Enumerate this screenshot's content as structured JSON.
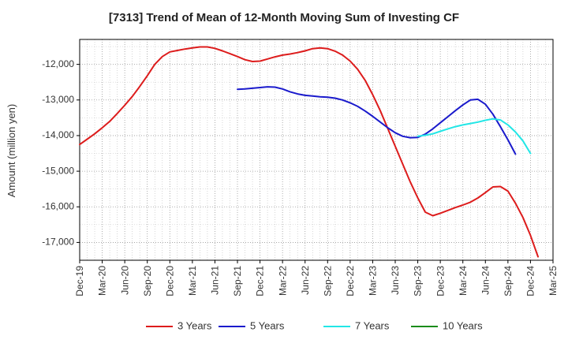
{
  "chart_data": {
    "type": "line",
    "title": "[7313]  Trend of Mean of 12-Month Moving Sum of Investing CF",
    "xlabel": "",
    "ylabel": "Amount (million yen)",
    "ylim": [
      -17500,
      -11300
    ],
    "yticks": [
      -12000,
      -13000,
      -14000,
      -15000,
      -16000,
      -17000
    ],
    "ytick_labels": [
      "-12,000",
      "-13,000",
      "-14,000",
      "-15,000",
      "-16,000",
      "-17,000"
    ],
    "x_tick_labels": [
      "Dec-19",
      "Mar-20",
      "Jun-20",
      "Sep-20",
      "Dec-20",
      "Mar-21",
      "Jun-21",
      "Sep-21",
      "Dec-21",
      "Mar-22",
      "Jun-22",
      "Sep-22",
      "Dec-22",
      "Mar-23",
      "Jun-23",
      "Sep-23",
      "Dec-23",
      "Mar-24",
      "Jun-24",
      "Sep-24",
      "Dec-24",
      "Mar-25"
    ],
    "grid": true,
    "legend_position": "bottom",
    "series": [
      {
        "name": "3 Years",
        "color": "#dd1c1c",
        "start_index": 0,
        "values": [
          -14250,
          -14100,
          -13950,
          -13780,
          -13600,
          -13380,
          -13150,
          -12900,
          -12620,
          -12320,
          -12000,
          -11780,
          -11650,
          -11610,
          -11570,
          -11540,
          -11510,
          -11510,
          -11550,
          -11620,
          -11700,
          -11780,
          -11870,
          -11920,
          -11910,
          -11850,
          -11790,
          -11740,
          -11710,
          -11670,
          -11620,
          -11560,
          -11540,
          -11560,
          -11630,
          -11740,
          -11910,
          -12140,
          -12450,
          -12850,
          -13300,
          -13800,
          -14300,
          -14800,
          -15300,
          -15750,
          -16150,
          -16250,
          -16180,
          -16100,
          -16020,
          -15950,
          -15870,
          -15750,
          -15600,
          -15440,
          -15430,
          -15560,
          -15900,
          -16300,
          -16800,
          -17400
        ]
      },
      {
        "name": "5 Years",
        "color": "#1a1acc",
        "start_index": 21,
        "values": [
          -12700,
          -12690,
          -12670,
          -12650,
          -12630,
          -12640,
          -12690,
          -12770,
          -12830,
          -12870,
          -12890,
          -12910,
          -12920,
          -12950,
          -13000,
          -13080,
          -13180,
          -13310,
          -13460,
          -13620,
          -13780,
          -13920,
          -14020,
          -14060,
          -14050,
          -13960,
          -13810,
          -13640,
          -13470,
          -13300,
          -13140,
          -13000,
          -12980,
          -13120,
          -13400,
          -13750,
          -14120,
          -14520
        ]
      },
      {
        "name": "7 Years",
        "color": "#22e6e6",
        "start_index": 45,
        "values": [
          -14020,
          -13990,
          -13950,
          -13880,
          -13810,
          -13750,
          -13700,
          -13660,
          -13620,
          -13570,
          -13530,
          -13560,
          -13700,
          -13900,
          -14150,
          -14500
        ]
      },
      {
        "name": "10 Years",
        "color": "#1a8c1a",
        "start_index": 0,
        "values": []
      }
    ]
  }
}
